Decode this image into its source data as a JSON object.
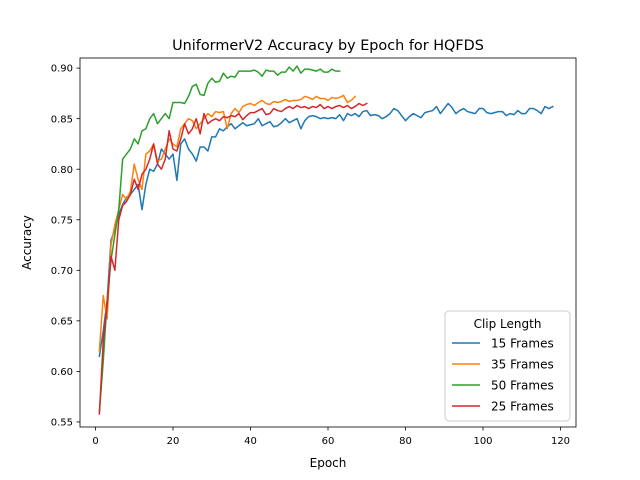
{
  "chart_data": {
    "type": "line",
    "title": "UniformerV2 Accuracy by Epoch for HQFDS",
    "xlabel": "Epoch",
    "ylabel": "Accuracy",
    "xlim": [
      -4,
      124
    ],
    "ylim": [
      0.545,
      0.91
    ],
    "xticks": [
      0,
      20,
      40,
      60,
      80,
      100,
      120
    ],
    "yticks": [
      0.55,
      0.6,
      0.65,
      0.7,
      0.75,
      0.8,
      0.85,
      0.9
    ],
    "grid": false,
    "legend": {
      "title": "Clip Length",
      "placement": "lower right"
    },
    "series": [
      {
        "name": "15 Frames",
        "color": "#1f77b4",
        "x": [
          1,
          2,
          3,
          4,
          5,
          6,
          7,
          8,
          9,
          10,
          11,
          12,
          13,
          14,
          15,
          16,
          17,
          18,
          19,
          20,
          21,
          22,
          23,
          24,
          25,
          26,
          27,
          28,
          29,
          30,
          31,
          32,
          33,
          34,
          35,
          36,
          37,
          38,
          39,
          40,
          41,
          42,
          43,
          44,
          45,
          46,
          47,
          48,
          49,
          50,
          51,
          52,
          53,
          54,
          55,
          56,
          57,
          58,
          59,
          60,
          61,
          62,
          63,
          64,
          65,
          66,
          67,
          68,
          69,
          70,
          71,
          72,
          73,
          74,
          75,
          76,
          77,
          78,
          79,
          80,
          81,
          82,
          83,
          84,
          85,
          86,
          87,
          88,
          89,
          90,
          91,
          92,
          93,
          94,
          95,
          96,
          97,
          98,
          99,
          100,
          101,
          102,
          103,
          104,
          105,
          106,
          107,
          108,
          109,
          110,
          111,
          112,
          113,
          114,
          115,
          116,
          117,
          118
        ],
        "values": [
          0.615,
          0.64,
          0.67,
          0.73,
          0.74,
          0.755,
          0.765,
          0.772,
          0.775,
          0.78,
          0.785,
          0.76,
          0.785,
          0.8,
          0.798,
          0.805,
          0.82,
          0.815,
          0.81,
          0.815,
          0.789,
          0.825,
          0.83,
          0.82,
          0.815,
          0.808,
          0.822,
          0.822,
          0.818,
          0.832,
          0.832,
          0.84,
          0.838,
          0.842,
          0.845,
          0.84,
          0.843,
          0.846,
          0.843,
          0.844,
          0.845,
          0.85,
          0.843,
          0.845,
          0.847,
          0.842,
          0.843,
          0.846,
          0.85,
          0.846,
          0.848,
          0.85,
          0.84,
          0.848,
          0.852,
          0.853,
          0.852,
          0.85,
          0.851,
          0.85,
          0.851,
          0.85,
          0.854,
          0.848,
          0.855,
          0.853,
          0.855,
          0.852,
          0.857,
          0.858,
          0.853,
          0.854,
          0.853,
          0.85,
          0.852,
          0.855,
          0.86,
          0.858,
          0.853,
          0.848,
          0.852,
          0.855,
          0.853,
          0.851,
          0.856,
          0.857,
          0.858,
          0.862,
          0.855,
          0.86,
          0.865,
          0.861,
          0.855,
          0.858,
          0.86,
          0.857,
          0.856,
          0.855,
          0.86,
          0.86,
          0.856,
          0.855,
          0.856,
          0.857,
          0.857,
          0.853,
          0.855,
          0.854,
          0.858,
          0.855,
          0.855,
          0.86,
          0.86,
          0.858,
          0.855,
          0.862,
          0.86,
          0.862
        ]
      },
      {
        "name": "35 Frames",
        "color": "#ff7f0e",
        "x": [
          1,
          2,
          3,
          4,
          5,
          6,
          7,
          8,
          9,
          10,
          11,
          12,
          13,
          14,
          15,
          16,
          17,
          18,
          19,
          20,
          21,
          22,
          23,
          24,
          25,
          26,
          27,
          28,
          29,
          30,
          31,
          32,
          33,
          34,
          35,
          36,
          37,
          38,
          39,
          40,
          41,
          42,
          43,
          44,
          45,
          46,
          47,
          48,
          49,
          50,
          51,
          52,
          53,
          54,
          55,
          56,
          57,
          58,
          59,
          60,
          61,
          62,
          63,
          64,
          65,
          66,
          67
        ],
        "values": [
          0.62,
          0.675,
          0.652,
          0.725,
          0.745,
          0.76,
          0.775,
          0.77,
          0.778,
          0.805,
          0.79,
          0.78,
          0.815,
          0.818,
          0.825,
          0.808,
          0.81,
          0.82,
          0.83,
          0.825,
          0.822,
          0.84,
          0.845,
          0.85,
          0.848,
          0.84,
          0.845,
          0.85,
          0.855,
          0.852,
          0.857,
          0.856,
          0.857,
          0.84,
          0.855,
          0.86,
          0.856,
          0.862,
          0.864,
          0.865,
          0.863,
          0.866,
          0.868,
          0.865,
          0.864,
          0.867,
          0.866,
          0.867,
          0.869,
          0.867,
          0.868,
          0.868,
          0.869,
          0.872,
          0.871,
          0.869,
          0.872,
          0.87,
          0.87,
          0.868,
          0.871,
          0.87,
          0.871,
          0.873,
          0.866,
          0.868,
          0.872
        ]
      },
      {
        "name": "50 Frames",
        "color": "#2ca02c",
        "x": [
          1,
          2,
          3,
          4,
          5,
          6,
          7,
          8,
          9,
          10,
          11,
          12,
          13,
          14,
          15,
          16,
          17,
          18,
          19,
          20,
          21,
          22,
          23,
          24,
          25,
          26,
          27,
          28,
          29,
          30,
          31,
          32,
          33,
          34,
          35,
          36,
          37,
          38,
          39,
          40,
          41,
          42,
          43,
          44,
          45,
          46,
          47,
          48,
          49,
          50,
          51,
          52,
          53,
          54,
          55,
          56,
          57,
          58,
          59,
          60,
          61,
          62,
          63
        ],
        "values": [
          0.56,
          0.61,
          0.67,
          0.71,
          0.735,
          0.76,
          0.81,
          0.815,
          0.82,
          0.83,
          0.825,
          0.838,
          0.84,
          0.85,
          0.855,
          0.845,
          0.85,
          0.855,
          0.85,
          0.866,
          0.866,
          0.866,
          0.865,
          0.872,
          0.882,
          0.884,
          0.874,
          0.873,
          0.885,
          0.89,
          0.886,
          0.887,
          0.895,
          0.89,
          0.892,
          0.891,
          0.897,
          0.897,
          0.897,
          0.897,
          0.898,
          0.896,
          0.892,
          0.898,
          0.897,
          0.897,
          0.893,
          0.896,
          0.896,
          0.901,
          0.897,
          0.902,
          0.895,
          0.899,
          0.899,
          0.898,
          0.897,
          0.899,
          0.896,
          0.896,
          0.899,
          0.897,
          0.897
        ]
      },
      {
        "name": "25 Frames",
        "color": "#d62728",
        "x": [
          1,
          2,
          3,
          4,
          5,
          6,
          7,
          8,
          9,
          10,
          11,
          12,
          13,
          14,
          15,
          16,
          17,
          18,
          19,
          20,
          21,
          22,
          23,
          24,
          25,
          26,
          27,
          28,
          29,
          30,
          31,
          32,
          33,
          34,
          35,
          36,
          37,
          38,
          39,
          40,
          41,
          42,
          43,
          44,
          45,
          46,
          47,
          48,
          49,
          50,
          51,
          52,
          53,
          54,
          55,
          56,
          57,
          58,
          59,
          60,
          61,
          62,
          63,
          64,
          65,
          66,
          67,
          68,
          69,
          70
        ],
        "values": [
          0.558,
          0.63,
          0.665,
          0.714,
          0.7,
          0.75,
          0.764,
          0.768,
          0.775,
          0.79,
          0.78,
          0.795,
          0.8,
          0.81,
          0.825,
          0.805,
          0.8,
          0.81,
          0.838,
          0.82,
          0.818,
          0.83,
          0.845,
          0.835,
          0.84,
          0.85,
          0.835,
          0.855,
          0.845,
          0.848,
          0.85,
          0.848,
          0.852,
          0.851,
          0.853,
          0.852,
          0.855,
          0.849,
          0.853,
          0.856,
          0.856,
          0.858,
          0.86,
          0.854,
          0.855,
          0.86,
          0.858,
          0.857,
          0.86,
          0.862,
          0.86,
          0.863,
          0.861,
          0.862,
          0.86,
          0.862,
          0.861,
          0.864,
          0.86,
          0.862,
          0.86,
          0.862,
          0.863,
          0.861,
          0.863,
          0.86,
          0.862,
          0.865,
          0.863,
          0.865
        ]
      }
    ]
  }
}
